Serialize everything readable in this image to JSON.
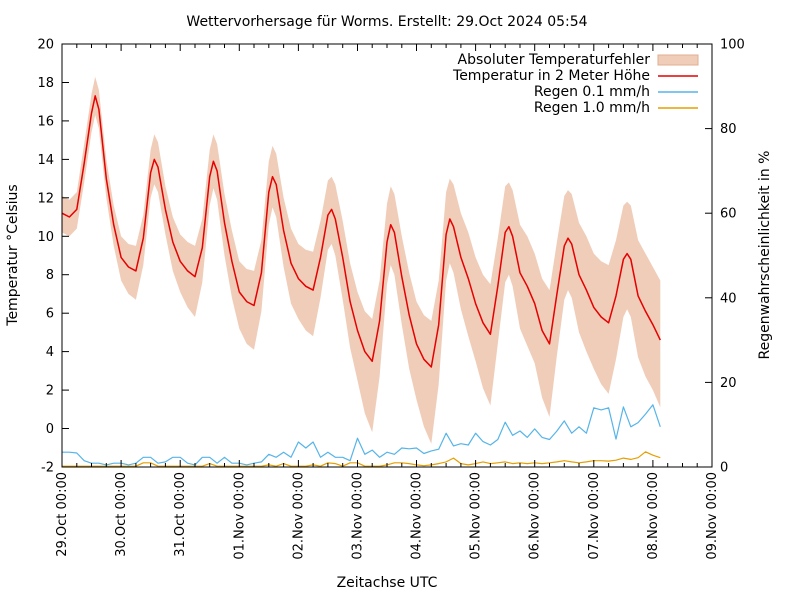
{
  "chart_data": {
    "type": "line",
    "title": "Wettervorhersage für Worms. Erstellt: 29.Oct 2024 05:54",
    "x_label": "Zeitachse UTC",
    "y_label": "Temperatur °Celsius",
    "y2_label": "Regenwahrscheinlichkeit in %",
    "x_range_hours": [
      0,
      264
    ],
    "y_range": [
      -2,
      20
    ],
    "y2_range": [
      0,
      100
    ],
    "x_major_tick_hours_step": 24,
    "x_minor_tick_hours_step": 6,
    "x_major_tick_labels": [
      "29.Oct 00:00",
      "30.Oct 00:00",
      "31.Oct 00:00",
      "01.Nov 00:00",
      "02.Nov 00:00",
      "03.Nov 00:00",
      "04.Nov 00:00",
      "05.Nov 00:00",
      "06.Nov 00:00",
      "07.Nov 00:00",
      "08.Nov 00:00",
      "09.Nov 00:00"
    ],
    "y_tick_labels": [
      "-2",
      "0",
      "2",
      "4",
      "6",
      "8",
      "10",
      "12",
      "14",
      "16",
      "18",
      "20"
    ],
    "y2_tick_labels": [
      "0",
      "20",
      "40",
      "60",
      "80",
      "100"
    ],
    "grid": false,
    "legend_position": "top-right-inside",
    "legend": [
      {
        "label": "Absoluter Temperaturfehler",
        "type": "band",
        "color": "#f0cdb9",
        "border": "#dfae90"
      },
      {
        "label": "Temperatur in 2 Meter Höhe",
        "type": "line",
        "color": "#e60000"
      },
      {
        "label": "Regen 0.1 mm/h",
        "type": "line",
        "color": "#56b4e9"
      },
      {
        "label": "Regen 1.0 mm/h",
        "type": "line",
        "color": "#e69f00"
      }
    ],
    "temperature_2m_celsius": {
      "x_hours": [
        0,
        3,
        6,
        9,
        12,
        13.5,
        15,
        18,
        21,
        24,
        27,
        30,
        33,
        36,
        37.5,
        39,
        42,
        45,
        48,
        51,
        54,
        57,
        60,
        61.5,
        63,
        66,
        69,
        72,
        75,
        78,
        81,
        84,
        85.5,
        87,
        90,
        93,
        96,
        99,
        102,
        105,
        108,
        109.5,
        111,
        114,
        117,
        120,
        123,
        126,
        129,
        132,
        133.5,
        135,
        138,
        141,
        144,
        147,
        150,
        153,
        156,
        157.5,
        159,
        162,
        165,
        168,
        171,
        174,
        177,
        180,
        181.5,
        183,
        186,
        189,
        192,
        195,
        198,
        201,
        204,
        205.5,
        207,
        210,
        213,
        216,
        219,
        222,
        225,
        228,
        229.5,
        231,
        234,
        237,
        240,
        243
      ],
      "values": [
        11.2,
        11.0,
        11.4,
        13.8,
        16.4,
        17.3,
        16.6,
        13.0,
        10.6,
        8.9,
        8.4,
        8.2,
        9.9,
        13.3,
        14.0,
        13.6,
        11.4,
        9.7,
        8.7,
        8.2,
        7.9,
        9.4,
        13.1,
        13.9,
        13.4,
        10.7,
        8.7,
        7.1,
        6.6,
        6.4,
        8.1,
        12.3,
        13.1,
        12.7,
        10.3,
        8.6,
        7.8,
        7.4,
        7.2,
        8.9,
        11.1,
        11.4,
        10.9,
        8.9,
        6.6,
        5.1,
        4.0,
        3.5,
        5.6,
        9.7,
        10.6,
        10.2,
        7.9,
        5.9,
        4.4,
        3.6,
        3.2,
        5.4,
        10.1,
        10.9,
        10.5,
        8.9,
        7.8,
        6.5,
        5.5,
        4.9,
        7.4,
        10.2,
        10.5,
        10.0,
        8.1,
        7.4,
        6.5,
        5.1,
        4.4,
        7.0,
        9.5,
        9.9,
        9.6,
        8.0,
        7.2,
        6.3,
        5.8,
        5.5,
        6.9,
        8.8,
        9.1,
        8.8,
        6.9,
        6.1,
        5.4,
        4.6
      ],
      "err_upper": [
        0.9,
        0.9,
        0.9,
        1.0,
        1.0,
        1.0,
        1.0,
        1.0,
        1.0,
        1.1,
        1.2,
        1.3,
        1.2,
        1.2,
        1.3,
        1.3,
        1.2,
        1.3,
        1.4,
        1.5,
        1.6,
        1.5,
        1.4,
        1.4,
        1.4,
        1.5,
        1.6,
        1.6,
        1.7,
        1.8,
        1.7,
        1.6,
        1.6,
        1.6,
        1.7,
        1.8,
        1.8,
        1.9,
        2.0,
        1.9,
        1.8,
        1.7,
        1.8,
        1.9,
        2.0,
        2.0,
        2.1,
        2.2,
        2.1,
        2.0,
        2.0,
        2.0,
        2.1,
        2.2,
        2.2,
        2.3,
        2.4,
        2.3,
        2.2,
        2.1,
        2.2,
        2.3,
        2.4,
        2.4,
        2.5,
        2.6,
        2.5,
        2.4,
        2.3,
        2.4,
        2.5,
        2.6,
        2.6,
        2.7,
        2.8,
        2.7,
        2.6,
        2.5,
        2.6,
        2.7,
        2.8,
        2.8,
        2.9,
        3.0,
        2.9,
        2.8,
        2.7,
        2.8,
        2.9,
        3.0,
        3.0,
        3.1
      ],
      "err_lower": [
        1.0,
        1.0,
        1.0,
        1.0,
        1.0,
        1.0,
        1.0,
        1.0,
        1.1,
        1.2,
        1.4,
        1.5,
        1.4,
        1.3,
        1.3,
        1.3,
        1.3,
        1.5,
        1.6,
        1.9,
        2.1,
        1.8,
        1.5,
        1.4,
        1.5,
        1.7,
        1.9,
        1.9,
        2.2,
        2.3,
        2.0,
        1.7,
        1.6,
        1.7,
        1.9,
        2.1,
        2.1,
        2.3,
        2.4,
        2.1,
        1.8,
        1.8,
        1.9,
        2.2,
        2.4,
        2.6,
        3.2,
        3.7,
        2.9,
        2.2,
        2.1,
        2.2,
        2.5,
        2.8,
        2.9,
        3.5,
        4.0,
        3.1,
        2.4,
        2.3,
        2.4,
        2.7,
        3.0,
        3.0,
        3.4,
        3.7,
        3.0,
        2.6,
        2.5,
        2.6,
        2.9,
        3.1,
        3.1,
        3.5,
        3.8,
        3.2,
        2.8,
        2.7,
        2.8,
        3.0,
        3.2,
        3.2,
        3.5,
        3.7,
        3.3,
        3.0,
        2.9,
        3.0,
        3.2,
        3.4,
        3.4,
        3.5
      ]
    },
    "rain_01mmh_percent": {
      "x_start_hours": 0,
      "x_step_hours": 3,
      "values": [
        3.5,
        3.5,
        3.3,
        1.5,
        0.9,
        0.9,
        0.5,
        0.9,
        0.9,
        0.5,
        0.9,
        2.3,
        2.3,
        0.9,
        1.2,
        2.3,
        2.3,
        0.9,
        0.5,
        2.3,
        2.3,
        0.9,
        2.3,
        0.9,
        0.9,
        0.5,
        0.9,
        1.2,
        3.0,
        2.3,
        3.5,
        2.3,
        5.9,
        4.5,
        5.9,
        2.3,
        3.5,
        2.3,
        2.3,
        1.5,
        6.8,
        3.0,
        4.0,
        2.3,
        3.5,
        3.0,
        4.5,
        4.3,
        4.5,
        3.2,
        3.8,
        4.2,
        8.0,
        5.0,
        5.5,
        5.2,
        8.0,
        6.0,
        5.2,
        6.5,
        10.6,
        7.5,
        8.5,
        7.0,
        9.0,
        7.0,
        6.5,
        8.5,
        10.9,
        8.0,
        9.5,
        8.0,
        14.0,
        13.5,
        14.0,
        6.6,
        14.2,
        9.5,
        10.5,
        12.5,
        14.7,
        9.5
      ]
    },
    "rain_10mmh_percent": {
      "x_start_hours": 0,
      "x_step_hours": 3,
      "values": [
        0.2,
        0.2,
        0.2,
        0.2,
        0.2,
        0.2,
        0.2,
        0.2,
        0.2,
        0.2,
        0.2,
        1.0,
        1.0,
        0.2,
        0.2,
        0.2,
        0.2,
        0.2,
        0.2,
        0.2,
        0.8,
        0.2,
        0.2,
        0.2,
        0.2,
        0.2,
        0.2,
        0.2,
        0.5,
        0.2,
        0.8,
        0.2,
        0.2,
        0.2,
        0.5,
        0.2,
        1.0,
        0.8,
        0.2,
        1.0,
        1.0,
        0.2,
        0.2,
        0.2,
        0.5,
        1.0,
        1.0,
        0.8,
        0.5,
        0.3,
        0.5,
        0.8,
        1.2,
        2.1,
        0.8,
        0.5,
        0.8,
        1.2,
        0.8,
        1.0,
        1.2,
        0.8,
        1.0,
        0.8,
        1.0,
        0.8,
        1.0,
        1.2,
        1.5,
        1.2,
        1.0,
        1.2,
        1.5,
        1.5,
        1.4,
        1.6,
        2.1,
        1.8,
        2.2,
        3.6,
        2.8,
        2.2
      ]
    },
    "colors": {
      "background": "#ffffff",
      "frame": "#000000",
      "band_fill": "#f0cdb9",
      "band_border": "#dfae90",
      "temperature_line": "#e60000",
      "rain_01_line": "#56b4e9",
      "rain_10_line": "#e69f00"
    }
  }
}
